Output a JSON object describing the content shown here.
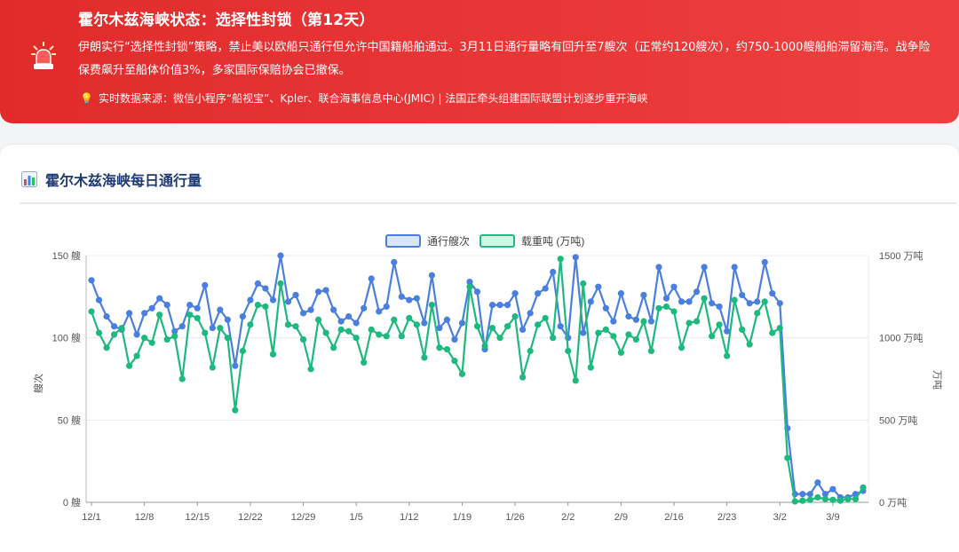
{
  "alert": {
    "title": "霍尔木兹海峡状态：选择性封锁（第12天）",
    "body": "伊朗实行“选择性封锁”策略，禁止美以欧船只通行但允许中国籍船舶通过。3月11日通行量略有回升至7艘次（正常约120艘次），约750-1000艘船舶滞留海湾。战争险保费飙升至船体价值3%，多家国际保赔协会已撤保。",
    "source": "实时数据来源：微信小程序“船视宝”、Kpler、联合海事信息中心(JMIC) | 法国正牵头组建国际联盟计划逐步重开海峡",
    "icon": "siren-icon",
    "source_icon": "lightbulb-icon",
    "colors": {
      "banner": "#e12b2b",
      "bulb": "#ffd54a"
    }
  },
  "card": {
    "title": "霍尔木兹海峡每日通行量",
    "icon": "bar-chart-icon"
  },
  "chart_data": {
    "type": "line",
    "legend": [
      "通行艘次",
      "载重吨 (万吨)"
    ],
    "legend_position": "top-center",
    "x_ticks": [
      "12/1",
      "12/8",
      "12/15",
      "12/22",
      "12/29",
      "1/5",
      "1/12",
      "1/19",
      "1/26",
      "2/2",
      "2/9",
      "2/16",
      "2/23",
      "3/2",
      "3/9"
    ],
    "y_left": {
      "label": "艘次",
      "ticks": [
        "0 艘",
        "50 艘",
        "100 艘",
        "150 艘"
      ],
      "range": [
        0,
        150
      ]
    },
    "y_right": {
      "label": "万吨",
      "ticks": [
        "0 万吨",
        "500 万吨",
        "1000 万吨",
        "1500 万吨"
      ],
      "range": [
        0,
        1500
      ]
    },
    "grid": true,
    "series": [
      {
        "name": "通行艘次",
        "color": "#4a7fe0",
        "values": [
          135,
          123,
          113,
          107,
          105,
          115,
          102,
          115,
          118,
          124,
          120,
          104,
          107,
          120,
          118,
          132,
          106,
          117,
          111,
          83,
          113,
          123,
          133,
          130,
          123,
          150,
          122,
          126,
          115,
          117,
          128,
          129,
          117,
          110,
          113,
          109,
          118,
          136,
          116,
          119,
          146,
          125,
          123,
          124,
          109,
          138,
          106,
          111,
          99,
          109,
          134,
          128,
          93,
          120,
          120,
          120,
          127,
          105,
          115,
          127,
          130,
          140,
          107,
          100,
          149,
          103,
          122,
          131,
          118,
          110,
          127,
          113,
          111,
          126,
          110,
          143,
          124,
          131,
          122,
          122,
          128,
          143,
          121,
          119,
          104,
          143,
          126,
          121,
          122,
          146,
          127,
          121,
          45,
          5,
          5,
          5,
          12,
          5,
          8,
          3,
          3,
          5,
          7
        ]
      },
      {
        "name": "载重吨 (万吨)",
        "color": "#1db97e",
        "values": [
          1160,
          1030,
          940,
          1020,
          1060,
          830,
          890,
          1000,
          970,
          1140,
          990,
          1010,
          750,
          1140,
          1120,
          1030,
          820,
          1060,
          1000,
          560,
          920,
          1080,
          1200,
          1190,
          900,
          1330,
          1080,
          1070,
          990,
          810,
          1110,
          1030,
          940,
          1050,
          1040,
          1000,
          850,
          1050,
          1020,
          1010,
          1110,
          1010,
          1120,
          1080,
          880,
          1200,
          940,
          930,
          860,
          780,
          1310,
          1070,
          950,
          1060,
          1000,
          1070,
          1130,
          760,
          920,
          1080,
          1120,
          1000,
          1480,
          920,
          740,
          1330,
          820,
          1030,
          1050,
          1010,
          910,
          1020,
          990,
          1100,
          920,
          1180,
          1190,
          1160,
          940,
          1090,
          1100,
          1240,
          1010,
          1080,
          890,
          1230,
          1050,
          960,
          1150,
          1220,
          1030,
          1060,
          270,
          5,
          10,
          15,
          30,
          20,
          15,
          10,
          20,
          20,
          90
        ]
      }
    ]
  }
}
